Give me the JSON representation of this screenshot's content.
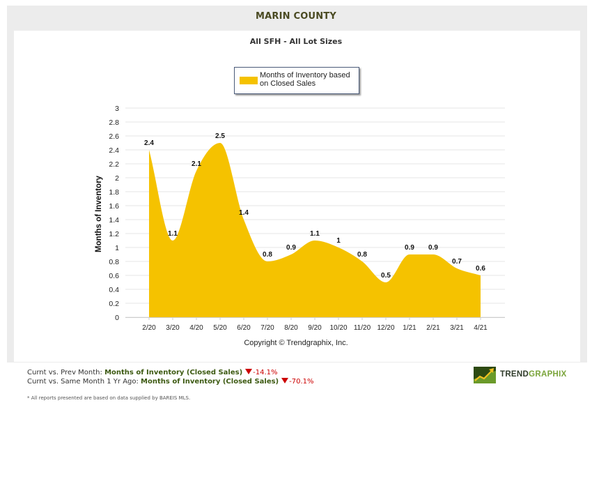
{
  "title": "MARIN COUNTY",
  "subtitle": "All SFH - All Lot Sizes",
  "copyright": "Copyright © Trendgraphix, Inc.",
  "stats": [
    {
      "prefix": "Curnt vs. Prev Month: ",
      "metric": "Months of Inventory (Closed Sales)",
      "change": "-14.1%"
    },
    {
      "prefix": "Curnt vs. Same Month 1 Yr Ago: ",
      "metric": "Months of Inventory (Closed Sales)",
      "change": "-70.1%"
    }
  ],
  "footnote": "* All reports presented are based on data supplied by BAREIS MLS.",
  "logo": {
    "part1": "TREND",
    "part2": "GRAPHIX"
  },
  "colors": {
    "fill": "#f5c200",
    "metric_text": "#3d5a12",
    "negative": "#cc0000",
    "grid": "#e6e6e6"
  },
  "chart_data": {
    "type": "area",
    "ylabel": "Months of Inventory",
    "xlabel": "",
    "ylim": [
      0,
      3
    ],
    "yticks": [
      "0",
      "0.2",
      "0.4",
      "0.6",
      "0.8",
      "1",
      "1.2",
      "1.4",
      "1.6",
      "1.8",
      "2",
      "2.2",
      "2.4",
      "2.6",
      "2.8",
      "3"
    ],
    "grid": true,
    "legend_position": "top-center",
    "categories": [
      "2/20",
      "3/20",
      "4/20",
      "5/20",
      "6/20",
      "7/20",
      "8/20",
      "9/20",
      "10/20",
      "11/20",
      "12/20",
      "1/21",
      "2/21",
      "3/21",
      "4/21"
    ],
    "series": [
      {
        "name": "Months of Inventory based on Closed Sales",
        "values": [
          2.4,
          1.1,
          2.1,
          2.5,
          1.4,
          0.8,
          0.9,
          1.1,
          1.0,
          0.8,
          0.5,
          0.9,
          0.9,
          0.7,
          0.6
        ],
        "labels": [
          "2.4",
          "1.1",
          "2.1",
          "2.5",
          "1.4",
          "0.8",
          "0.9",
          "1.1",
          "1",
          "0.8",
          "0.5",
          "0.9",
          "0.9",
          "0.7",
          "0.6"
        ]
      }
    ]
  }
}
